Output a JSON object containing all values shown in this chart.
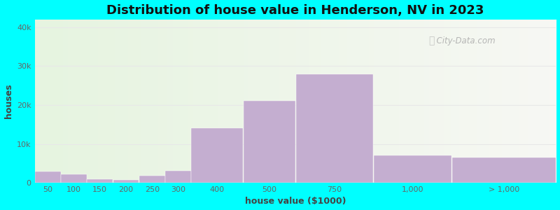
{
  "title": "Distribution of house value in Henderson, NV in 2023",
  "xlabel": "house value ($1000)",
  "ylabel": "houses",
  "background_outer": "#00FFFF",
  "bar_color": "#c4aed0",
  "bar_edgecolor": "#ffffff",
  "yticks": [
    0,
    10000,
    20000,
    30000,
    40000
  ],
  "ytick_labels": [
    "0",
    "10k",
    "20k",
    "30k",
    "40k"
  ],
  "ylim": [
    0,
    42000
  ],
  "categories": [
    "50",
    "100",
    "150",
    "200",
    "250",
    "300",
    "400",
    "500",
    "750",
    "1,000",
    "> 1,000"
  ],
  "values": [
    2800,
    2100,
    900,
    700,
    1800,
    3000,
    14000,
    21000,
    28000,
    7000,
    6500
  ],
  "bar_lefts": [
    0,
    1,
    2,
    3,
    4,
    5,
    6,
    7,
    8,
    9,
    10
  ],
  "bar_widths": [
    1,
    1,
    1,
    1,
    1,
    1,
    2,
    2,
    3,
    3,
    4
  ],
  "title_fontsize": 13,
  "axis_label_fontsize": 9,
  "tick_fontsize": 8,
  "watermark_text": "City-Data.com",
  "grid_color": "#e8e8e8",
  "bg_left_color": "#e6f4e0",
  "bg_right_color": "#f8f8f5"
}
